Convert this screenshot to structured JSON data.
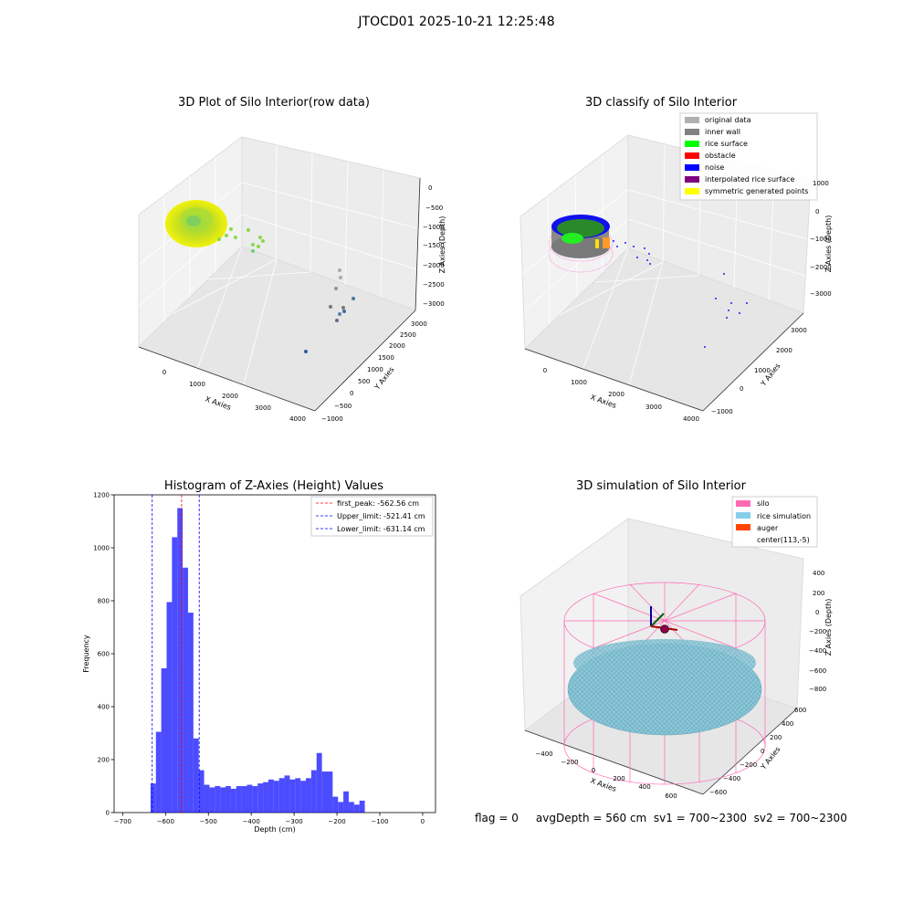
{
  "figure": {
    "title": "JTOCD01 2025-10-21 12:25:48",
    "status": "flag = 0     avgDepth = 560 cm  sv1 = 700~2300  sv2 = 700~2300"
  },
  "panels": {
    "raw": {
      "title": "3D Plot of Silo Interior(row data)",
      "x_label": "X Axies",
      "y_label": "Y Axies",
      "z_label": "Z Axies (Depth)",
      "x_ticks": [
        "0",
        "1000",
        "2000",
        "3000",
        "4000"
      ],
      "y_ticks": [
        "−1000",
        "−500",
        "0",
        "500",
        "1000",
        "1500",
        "2000",
        "2500",
        "3000"
      ],
      "z_ticks": [
        "0",
        "−500",
        "−1000",
        "−1500",
        "−2000",
        "−2500",
        "−3000"
      ]
    },
    "classify": {
      "title": "3D classify of Silo Interior",
      "x_label": "X Axies",
      "y_label": "Y Axies",
      "z_label": "Z Axies (Depth)",
      "x_ticks": [
        "0",
        "1000",
        "2000",
        "3000",
        "4000"
      ],
      "y_ticks": [
        "−1000",
        "0",
        "1000",
        "2000",
        "3000"
      ],
      "z_ticks": [
        "1000",
        "0",
        "−1000",
        "−2000",
        "−3000"
      ],
      "legend": [
        {
          "label": "original data",
          "color": "#b0b0b0"
        },
        {
          "label": "inner wall",
          "color": "#808080"
        },
        {
          "label": "rice surface",
          "color": "#00ff00"
        },
        {
          "label": "obstacle",
          "color": "#ff0000"
        },
        {
          "label": "noise",
          "color": "#0000ff"
        },
        {
          "label": "interpolated rice surface",
          "color": "#800080"
        },
        {
          "label": "symmetric generated points",
          "color": "#ffff00"
        }
      ]
    },
    "simulation": {
      "title": "3D simulation of Silo Interior",
      "x_label": "X Axies",
      "y_label": "Y Axies",
      "z_label": "Z Axies (Depth)",
      "x_ticks": [
        "−400",
        "−200",
        "0",
        "200",
        "400",
        "600"
      ],
      "y_ticks": [
        "−600",
        "−400",
        "−200",
        "0",
        "200",
        "400",
        "600"
      ],
      "z_ticks": [
        "400",
        "200",
        "0",
        "−200",
        "−400",
        "−600",
        "−800"
      ],
      "legend": [
        {
          "label": "silo",
          "color": "#ff69b4"
        },
        {
          "label": "rice simulation",
          "color": "#87ceeb"
        },
        {
          "label": "auger",
          "color": "#ff4500"
        },
        {
          "label": "center(113,-5)",
          "color": ""
        }
      ]
    }
  },
  "chart_data": [
    {
      "type": "bar",
      "title": "Histogram of Z-Axies (Height) Values",
      "xlabel": "Depth (cm)",
      "ylabel": "Frequency",
      "xlim": [
        -720,
        30
      ],
      "ylim": [
        0,
        1200
      ],
      "x_ticks": [
        -700,
        -600,
        -500,
        -400,
        -300,
        -200,
        -100,
        0
      ],
      "y_ticks": [
        0,
        200,
        400,
        600,
        800,
        1000,
        1200
      ],
      "bar_color": "#0000ff",
      "bin_start": -635,
      "bin_width": 12.5,
      "values": [
        110,
        305,
        545,
        795,
        1040,
        1150,
        925,
        755,
        280,
        160,
        105,
        95,
        100,
        95,
        100,
        90,
        100,
        100,
        105,
        100,
        110,
        115,
        125,
        120,
        130,
        140,
        125,
        130,
        120,
        130,
        160,
        225,
        155,
        155,
        60,
        40,
        80,
        40,
        30,
        45
      ],
      "reference_lines": [
        {
          "label": "first_peak: -562.56 cm",
          "x": -562.56,
          "color": "#ff0000"
        },
        {
          "label": "Upper_limit: -521.41 cm",
          "x": -521.41,
          "color": "#0000ff"
        },
        {
          "label": "Lower_limit: -631.14 cm",
          "x": -631.14,
          "color": "#0000ff"
        }
      ],
      "legend_position": "top-right"
    }
  ]
}
